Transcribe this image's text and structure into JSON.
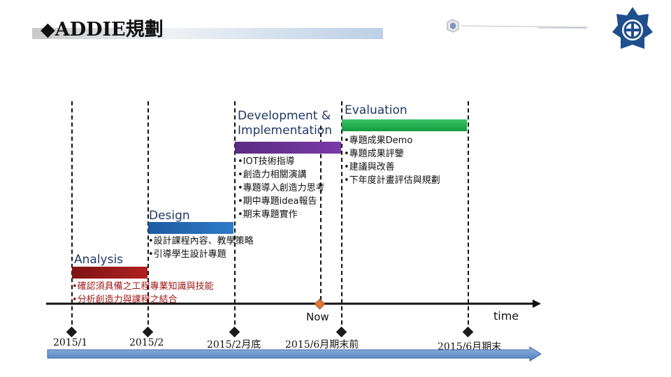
{
  "header": {
    "title": "◆ADDIE規劃"
  },
  "phases": [
    {
      "label": "Analysis",
      "color": "#8b1a1a"
    },
    {
      "label": "Design",
      "color": "#1f5fa8"
    },
    {
      "label": "Development & Implementation",
      "color": "#5b2a86"
    },
    {
      "label": "Evaluation",
      "color": "#1aab4a"
    }
  ],
  "analysis_items": [
    "•確認須具備之工程專業知識與技能",
    "•分析創造力與課程之結合"
  ],
  "design_items": [
    "•設計課程內容、教學策略",
    "•引導學生設計專題"
  ],
  "development_items": [
    "•IOT技術指導",
    "•創造力相關演講",
    "•專題導入創造力思考",
    "•期中專題idea報告",
    "•期末專題實作"
  ],
  "evaluation_items": [
    "•專題成果Demo",
    "•專題成果評鑒",
    "•建議與改善",
    "•下年度計畫評估與規劃"
  ],
  "timeline": {
    "axis_label": "time",
    "now_label": "Now",
    "dates": [
      "2015/1",
      "2015/2",
      "2015/2月底",
      "2015/6月期末前",
      "2015/6月期末"
    ]
  }
}
